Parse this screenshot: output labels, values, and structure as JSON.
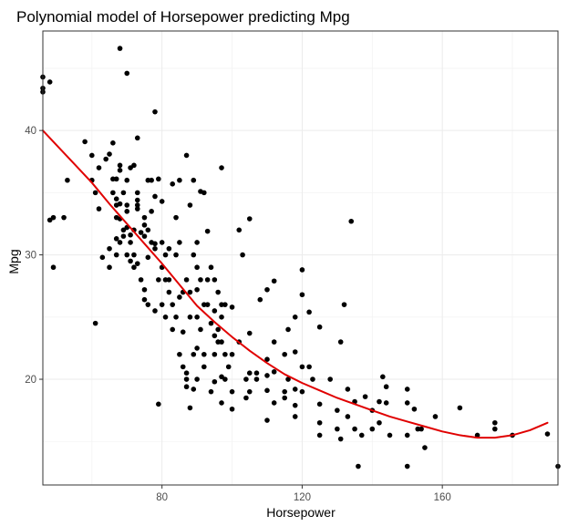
{
  "chart_data": {
    "type": "scatter",
    "title": "Polynomial model of Horsepower predicting Mpg",
    "xlabel": "Horsepower",
    "ylabel": "Mpg",
    "xlim": [
      46,
      193
    ],
    "ylim": [
      11.5,
      48
    ],
    "x_ticks": [
      80,
      120,
      160
    ],
    "y_ticks": [
      20,
      30,
      40
    ],
    "x_tick_labels": [
      "80",
      "120",
      "160"
    ],
    "y_tick_labels": [
      "20",
      "30",
      "40"
    ],
    "grid": true,
    "legend": "none",
    "colors": {
      "points": "#000000",
      "fit_line": "#e00000",
      "panel_border": "#333333",
      "grid": "#ebebeb"
    },
    "series": [
      {
        "type": "scatter",
        "points": [
          [
            46,
            43.1
          ],
          [
            46,
            43.4
          ],
          [
            46,
            44.3
          ],
          [
            48,
            43.9
          ],
          [
            49,
            33.0
          ],
          [
            49,
            29.0
          ],
          [
            48,
            32.8
          ],
          [
            52,
            33.0
          ],
          [
            53,
            36.0
          ],
          [
            58,
            39.1
          ],
          [
            60,
            38.0
          ],
          [
            60,
            36.0
          ],
          [
            61,
            35.0
          ],
          [
            61,
            24.5
          ],
          [
            62,
            33.7
          ],
          [
            62,
            37.0
          ],
          [
            63,
            29.8
          ],
          [
            64,
            37.7
          ],
          [
            65,
            38.1
          ],
          [
            65,
            30.5
          ],
          [
            65,
            29.0
          ],
          [
            66,
            39.0
          ],
          [
            66,
            36.1
          ],
          [
            66,
            35.0
          ],
          [
            67,
            36.1
          ],
          [
            67,
            34.5
          ],
          [
            67,
            34.0
          ],
          [
            67,
            31.3
          ],
          [
            67,
            33.0
          ],
          [
            67,
            30.0
          ],
          [
            68,
            46.6
          ],
          [
            68,
            37.2
          ],
          [
            68,
            36.8
          ],
          [
            68,
            34.1
          ],
          [
            68,
            32.9
          ],
          [
            68,
            31.0
          ],
          [
            69,
            32.0
          ],
          [
            69,
            31.5
          ],
          [
            69,
            35.0
          ],
          [
            70,
            44.6
          ],
          [
            70,
            34.0
          ],
          [
            70,
            36.0
          ],
          [
            70,
            33.5
          ],
          [
            70,
            32.2
          ],
          [
            70,
            30.0
          ],
          [
            71,
            37.0
          ],
          [
            71,
            31.6
          ],
          [
            71,
            31.0
          ],
          [
            71,
            29.5
          ],
          [
            72,
            37.2
          ],
          [
            72,
            32.0
          ],
          [
            72,
            30.0
          ],
          [
            72,
            29.0
          ],
          [
            73,
            39.4
          ],
          [
            73,
            35.0
          ],
          [
            73,
            34.4
          ],
          [
            73,
            34.0
          ],
          [
            73,
            33.7
          ],
          [
            73,
            29.3
          ],
          [
            74,
            31.8
          ],
          [
            74,
            28.0
          ],
          [
            75,
            33.0
          ],
          [
            75,
            32.4
          ],
          [
            75,
            31.5
          ],
          [
            75,
            27.2
          ],
          [
            75,
            26.4
          ],
          [
            76,
            36.0
          ],
          [
            76,
            32.0
          ],
          [
            76,
            29.8
          ],
          [
            76,
            26.0
          ],
          [
            77,
            36.0
          ],
          [
            77,
            33.5
          ],
          [
            77,
            31.0
          ],
          [
            78,
            41.5
          ],
          [
            78,
            34.7
          ],
          [
            78,
            30.9
          ],
          [
            78,
            30.5
          ],
          [
            78,
            25.5
          ],
          [
            79,
            28.0
          ],
          [
            79,
            36.1
          ],
          [
            79,
            18.0
          ],
          [
            80,
            34.3
          ],
          [
            80,
            31.0
          ],
          [
            80,
            29.0
          ],
          [
            80,
            26.0
          ],
          [
            81,
            30.0
          ],
          [
            81,
            28.0
          ],
          [
            81,
            25.0
          ],
          [
            82,
            30.5
          ],
          [
            82,
            28.0
          ],
          [
            82,
            27.0
          ],
          [
            83,
            35.7
          ],
          [
            83,
            26.0
          ],
          [
            83,
            24.0
          ],
          [
            84,
            33.0
          ],
          [
            84,
            30.0
          ],
          [
            84,
            25.0
          ],
          [
            85,
            36.0
          ],
          [
            85,
            31.0
          ],
          [
            85,
            26.6
          ],
          [
            85,
            22.0
          ],
          [
            86,
            27.0
          ],
          [
            86,
            23.8
          ],
          [
            86,
            21.0
          ],
          [
            87,
            38.0
          ],
          [
            87,
            28.0
          ],
          [
            87,
            20.5
          ],
          [
            87,
            20.0
          ],
          [
            87,
            19.4
          ],
          [
            88,
            34.0
          ],
          [
            88,
            27.0
          ],
          [
            88,
            25.0
          ],
          [
            88,
            17.7
          ],
          [
            89,
            36.0
          ],
          [
            89,
            30.0
          ],
          [
            89,
            22.0
          ],
          [
            89,
            19.2
          ],
          [
            90,
            31.0
          ],
          [
            90,
            29.0
          ],
          [
            90,
            27.2
          ],
          [
            90,
            25.0
          ],
          [
            90,
            22.5
          ],
          [
            90,
            20.0
          ],
          [
            91,
            35.1
          ],
          [
            91,
            28.0
          ],
          [
            91,
            24.0
          ],
          [
            92,
            35.0
          ],
          [
            92,
            26.0
          ],
          [
            92,
            22.0
          ],
          [
            92,
            21.0
          ],
          [
            93,
            31.9
          ],
          [
            93,
            28.0
          ],
          [
            93,
            26.0
          ],
          [
            94,
            29.0
          ],
          [
            94,
            24.5
          ],
          [
            94,
            19.0
          ],
          [
            95,
            28.0
          ],
          [
            95,
            25.5
          ],
          [
            95,
            23.5
          ],
          [
            95,
            22.0
          ],
          [
            95,
            19.8
          ],
          [
            96,
            27.0
          ],
          [
            96,
            24.0
          ],
          [
            96,
            23.0
          ],
          [
            97,
            37.0
          ],
          [
            97,
            26.0
          ],
          [
            97,
            25.0
          ],
          [
            97,
            23.0
          ],
          [
            97,
            20.2
          ],
          [
            97,
            18.1
          ],
          [
            98,
            26.0
          ],
          [
            98,
            22.0
          ],
          [
            98,
            20.0
          ],
          [
            99,
            21.0
          ],
          [
            100,
            25.8
          ],
          [
            100,
            22.0
          ],
          [
            100,
            19.0
          ],
          [
            100,
            17.6
          ],
          [
            102,
            32.0
          ],
          [
            102,
            23.0
          ],
          [
            103,
            30.0
          ],
          [
            104,
            20.0
          ],
          [
            104,
            18.5
          ],
          [
            105,
            32.9
          ],
          [
            105,
            23.7
          ],
          [
            105,
            20.5
          ],
          [
            105,
            19.0
          ],
          [
            107,
            20.5
          ],
          [
            107,
            20.0
          ],
          [
            108,
            26.4
          ],
          [
            110,
            27.2
          ],
          [
            110,
            21.6
          ],
          [
            110,
            20.3
          ],
          [
            110,
            19.1
          ],
          [
            110,
            16.7
          ],
          [
            112,
            27.9
          ],
          [
            112,
            23.0
          ],
          [
            112,
            20.6
          ],
          [
            112,
            18.1
          ],
          [
            115,
            22.0
          ],
          [
            115,
            19.0
          ],
          [
            115,
            18.5
          ],
          [
            116,
            24.0
          ],
          [
            116,
            20.0
          ],
          [
            118,
            25.0
          ],
          [
            118,
            22.2
          ],
          [
            118,
            19.2
          ],
          [
            118,
            17.9
          ],
          [
            118,
            17.0
          ],
          [
            120,
            28.8
          ],
          [
            120,
            26.8
          ],
          [
            120,
            21.0
          ],
          [
            120,
            19.0
          ],
          [
            122,
            25.4
          ],
          [
            122,
            21.0
          ],
          [
            123,
            20.0
          ],
          [
            125,
            24.2
          ],
          [
            125,
            18.0
          ],
          [
            125,
            16.5
          ],
          [
            125,
            15.5
          ],
          [
            128,
            20.0
          ],
          [
            130,
            17.5
          ],
          [
            130,
            16.0
          ],
          [
            131,
            23.0
          ],
          [
            131,
            15.2
          ],
          [
            132,
            26.0
          ],
          [
            133,
            19.2
          ],
          [
            133,
            17.0
          ],
          [
            134,
            32.7
          ],
          [
            135,
            18.2
          ],
          [
            135,
            16.0
          ],
          [
            136,
            13.0
          ],
          [
            137,
            15.5
          ],
          [
            138,
            18.6
          ],
          [
            140,
            17.5
          ],
          [
            140,
            16.0
          ],
          [
            142,
            18.2
          ],
          [
            142,
            16.5
          ],
          [
            143,
            20.2
          ],
          [
            144,
            19.4
          ],
          [
            144,
            18.1
          ],
          [
            145,
            15.5
          ],
          [
            150,
            19.2
          ],
          [
            150,
            18.1
          ],
          [
            150,
            15.5
          ],
          [
            150,
            13.0
          ],
          [
            152,
            17.6
          ],
          [
            153,
            16.0
          ],
          [
            154,
            16.0
          ],
          [
            155,
            14.5
          ],
          [
            158,
            17.0
          ],
          [
            165,
            17.7
          ],
          [
            170,
            15.5
          ],
          [
            175,
            16.5
          ],
          [
            175,
            16.0
          ],
          [
            180,
            15.5
          ],
          [
            190,
            15.6
          ],
          [
            193,
            13.0
          ]
        ]
      },
      {
        "type": "line",
        "points": [
          [
            46,
            40.0
          ],
          [
            50,
            38.8
          ],
          [
            55,
            37.3
          ],
          [
            60,
            35.8
          ],
          [
            65,
            34.1
          ],
          [
            70,
            32.5
          ],
          [
            75,
            30.9
          ],
          [
            80,
            29.3
          ],
          [
            85,
            27.6
          ],
          [
            90,
            25.9
          ],
          [
            95,
            24.6
          ],
          [
            100,
            23.4
          ],
          [
            105,
            22.3
          ],
          [
            110,
            21.3
          ],
          [
            115,
            20.4
          ],
          [
            120,
            19.7
          ],
          [
            125,
            19.1
          ],
          [
            130,
            18.5
          ],
          [
            135,
            18.0
          ],
          [
            140,
            17.5
          ],
          [
            145,
            17.0
          ],
          [
            150,
            16.6
          ],
          [
            155,
            16.2
          ],
          [
            160,
            15.8
          ],
          [
            165,
            15.5
          ],
          [
            170,
            15.3
          ],
          [
            175,
            15.3
          ],
          [
            180,
            15.5
          ],
          [
            185,
            15.9
          ],
          [
            190,
            16.5
          ]
        ]
      }
    ]
  }
}
